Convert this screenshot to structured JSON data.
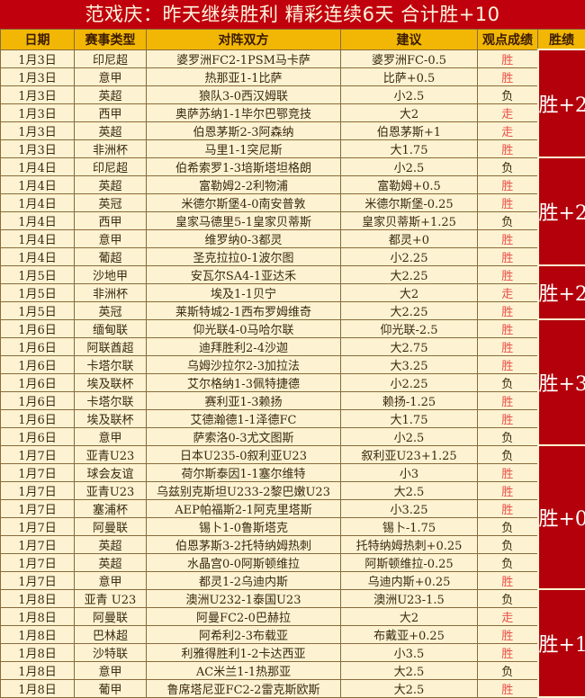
{
  "title": "范戏庆：昨天继续胜利  精彩连续6天  合计胜+10",
  "headers": [
    "日期",
    "赛事类型",
    "对阵双方",
    "建议",
    "观点成绩",
    "胜绩"
  ],
  "colors": {
    "title_bg": "#c0000c",
    "header_bg": "#f2b705",
    "row_bg": "#fdf3d2",
    "summary_bg": "#b3000a",
    "win_text": "#e8504a"
  },
  "groups": [
    {
      "summary": "胜+2",
      "rows": [
        {
          "date": "1月3日",
          "league": "印尼超",
          "match": "婆罗洲FC2-1PSM马卡萨",
          "tip": "婆罗洲FC-0.5",
          "result": "胜"
        },
        {
          "date": "1月3日",
          "league": "意甲",
          "match": "热那亚1-1比萨",
          "tip": "比萨+0.5",
          "result": "胜"
        },
        {
          "date": "1月3日",
          "league": "英超",
          "match": "狼队3-0西汉姆联",
          "tip": "小2.5",
          "result": "负"
        },
        {
          "date": "1月3日",
          "league": "西甲",
          "match": "奥萨苏纳1-1毕尔巴鄂竞技",
          "tip": "大2",
          "result": "走"
        },
        {
          "date": "1月3日",
          "league": "英超",
          "match": "伯恩茅斯2-3阿森纳",
          "tip": "伯恩茅斯+1",
          "result": "走"
        },
        {
          "date": "1月3日",
          "league": "非洲杯",
          "match": "马里1-1突尼斯",
          "tip": "大1.75",
          "result": "胜"
        }
      ]
    },
    {
      "summary": "胜+2",
      "rows": [
        {
          "date": "1月4日",
          "league": "印尼超",
          "match": "伯希索罗1-3培斯塔坦格朗",
          "tip": "小2.5",
          "result": "负"
        },
        {
          "date": "1月4日",
          "league": "英超",
          "match": "富勒姆2-2利物浦",
          "tip": "富勒姆+0.5",
          "result": "胜"
        },
        {
          "date": "1月4日",
          "league": "英冠",
          "match": "米德尔斯堡4-0南安普敦",
          "tip": "米德尔斯堡-0.25",
          "result": "胜"
        },
        {
          "date": "1月4日",
          "league": "西甲",
          "match": "皇家马德里5-1皇家贝蒂斯",
          "tip": "皇家贝蒂斯+1.25",
          "result": "负"
        },
        {
          "date": "1月4日",
          "league": "意甲",
          "match": "维罗纳0-3都灵",
          "tip": "都灵+0",
          "result": "胜"
        },
        {
          "date": "1月4日",
          "league": "葡超",
          "match": "圣克拉拉0-1波尔图",
          "tip": "小2.25",
          "result": "胜"
        }
      ]
    },
    {
      "summary": "胜+2",
      "rows": [
        {
          "date": "1月5日",
          "league": "沙地甲",
          "match": "安瓦尔SA4-1亚达禾",
          "tip": "大2.25",
          "result": "胜"
        },
        {
          "date": "1月5日",
          "league": "非洲杯",
          "match": "埃及1-1贝宁",
          "tip": "大2",
          "result": "走"
        },
        {
          "date": "1月5日",
          "league": "英冠",
          "match": "莱斯特城2-1西布罗姆维奇",
          "tip": "大2.25",
          "result": "胜"
        }
      ]
    },
    {
      "summary": "胜+3",
      "rows": [
        {
          "date": "1月6日",
          "league": "缅甸联",
          "match": "仰光联4-0马哈尔联",
          "tip": "仰光联-2.5",
          "result": "胜"
        },
        {
          "date": "1月6日",
          "league": "阿联酋超",
          "match": "迪拜胜利2-4沙迦",
          "tip": "大2.75",
          "result": "胜"
        },
        {
          "date": "1月6日",
          "league": "卡塔尔联",
          "match": "乌姆沙拉尔2-3加拉法",
          "tip": "大3.25",
          "result": "胜"
        },
        {
          "date": "1月6日",
          "league": "埃及联杯",
          "match": "艾尔格纳1-3佩特捷德",
          "tip": "小2.25",
          "result": "负"
        },
        {
          "date": "1月6日",
          "league": "卡塔尔联",
          "match": "赛利亚1-3赖扬",
          "tip": "赖扬-1.25",
          "result": "胜"
        },
        {
          "date": "1月6日",
          "league": "埃及联杯",
          "match": "艾德瀚德1-1泽德FC",
          "tip": "大1.75",
          "result": "胜"
        },
        {
          "date": "1月6日",
          "league": "意甲",
          "match": "萨索洛0-3尤文图斯",
          "tip": "小2.5",
          "result": "负"
        }
      ]
    },
    {
      "summary": "胜+0",
      "rows": [
        {
          "date": "1月7日",
          "league": "亚青U23",
          "match": "日本U235-0叙利亚U23",
          "tip": "叙利亚U23+1.25",
          "result": "负"
        },
        {
          "date": "1月7日",
          "league": "球会友谊",
          "match": "荷尔斯泰因1-1塞尔维特",
          "tip": "小3",
          "result": "胜"
        },
        {
          "date": "1月7日",
          "league": "亚青U23",
          "match": "乌兹别克斯坦U233-2黎巴嫩U23",
          "tip": "大2.5",
          "result": "胜"
        },
        {
          "date": "1月7日",
          "league": "塞浦杯",
          "match": "AEP帕福斯2-1阿克里塔斯",
          "tip": "小3.25",
          "result": "胜"
        },
        {
          "date": "1月7日",
          "league": "阿曼联",
          "match": "锡卜1-0鲁斯塔克",
          "tip": "锡卜-1.75",
          "result": "负"
        },
        {
          "date": "1月7日",
          "league": "英超",
          "match": "伯恩茅斯3-2托特纳姆热刺",
          "tip": "托特纳姆热刺+0.25",
          "result": "负"
        },
        {
          "date": "1月7日",
          "league": "英超",
          "match": "水晶宫0-0阿斯顿维拉",
          "tip": "阿斯顿维拉-0.25",
          "result": "负"
        },
        {
          "date": "1月7日",
          "league": "意甲",
          "match": "都灵1-2乌迪内斯",
          "tip": "乌迪内斯+0.25",
          "result": "胜"
        }
      ]
    },
    {
      "summary": "胜+1",
      "rows": [
        {
          "date": "1月8日",
          "league": "亚青 U23",
          "match": "澳洲U232-1泰国U23",
          "tip": "澳洲U23-1.5",
          "result": "负"
        },
        {
          "date": "1月8日",
          "league": "阿曼联",
          "match": "阿曼FC2-0巴赫拉",
          "tip": "大2",
          "result": "走"
        },
        {
          "date": "1月8日",
          "league": "巴林超",
          "match": "阿希利2-3布载亚",
          "tip": "布戴亚+0.25",
          "result": "胜"
        },
        {
          "date": "1月8日",
          "league": "沙特联",
          "match": "利雅得胜利1-2卡达西亚",
          "tip": "小3.5",
          "result": "胜"
        },
        {
          "date": "1月8日",
          "league": "意甲",
          "match": "AC米兰1-1热那亚",
          "tip": "大2.5",
          "result": "负"
        },
        {
          "date": "1月8日",
          "league": "葡甲",
          "match": "鲁席塔尼亚FC2-2雷克斯欧斯",
          "tip": "大2.5",
          "result": "胜"
        }
      ]
    }
  ]
}
